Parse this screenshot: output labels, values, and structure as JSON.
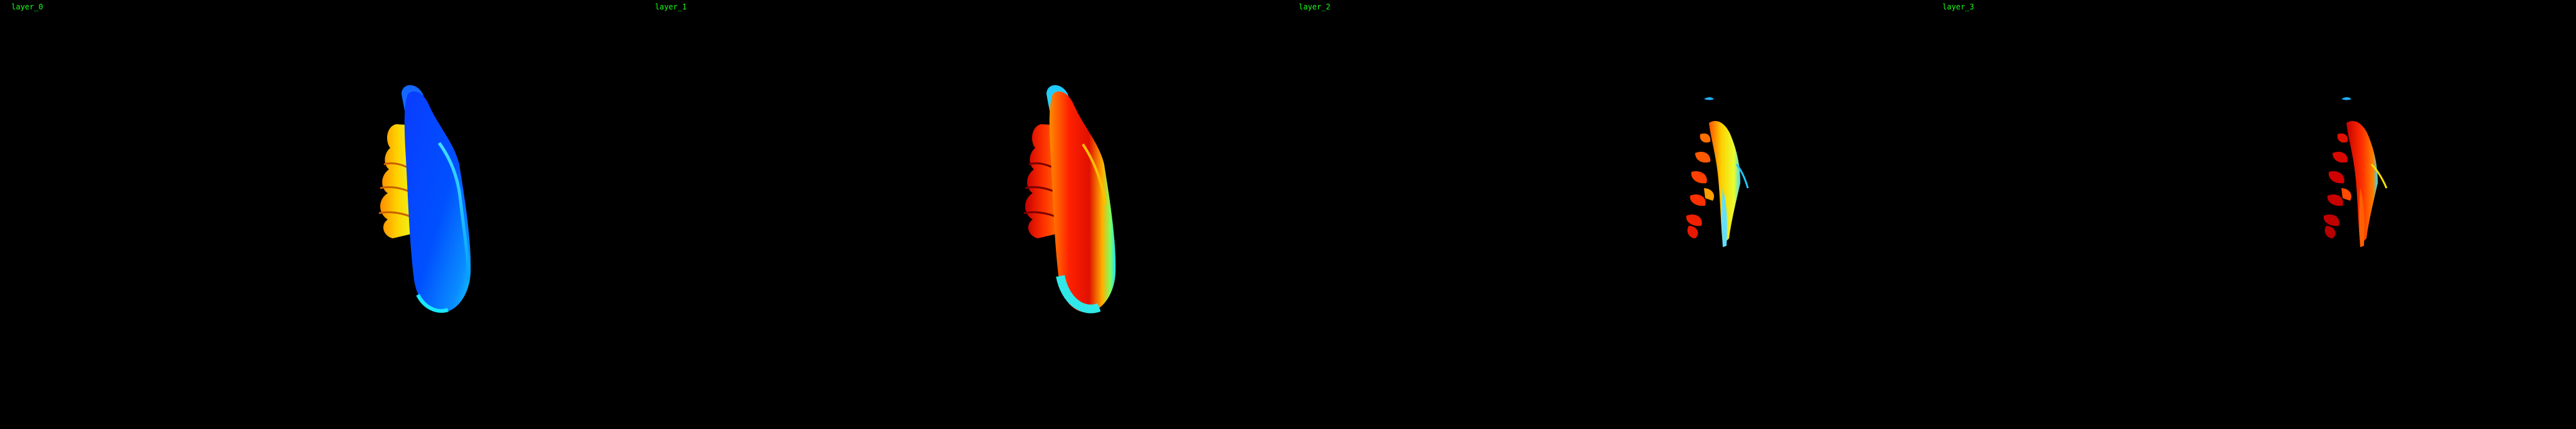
{
  "label_color": "#19ff19",
  "background_color": "#000000",
  "colormap": "jet",
  "panels": [
    {
      "label": "layer_0",
      "image": "hand-mesh-depth-render"
    },
    {
      "label": "layer_1",
      "image": "hand-mesh-depth-render"
    },
    {
      "label": "layer_2",
      "image": "hand-mesh-partial-render"
    },
    {
      "label": "layer_3",
      "image": "hand-mesh-partial-render"
    }
  ]
}
